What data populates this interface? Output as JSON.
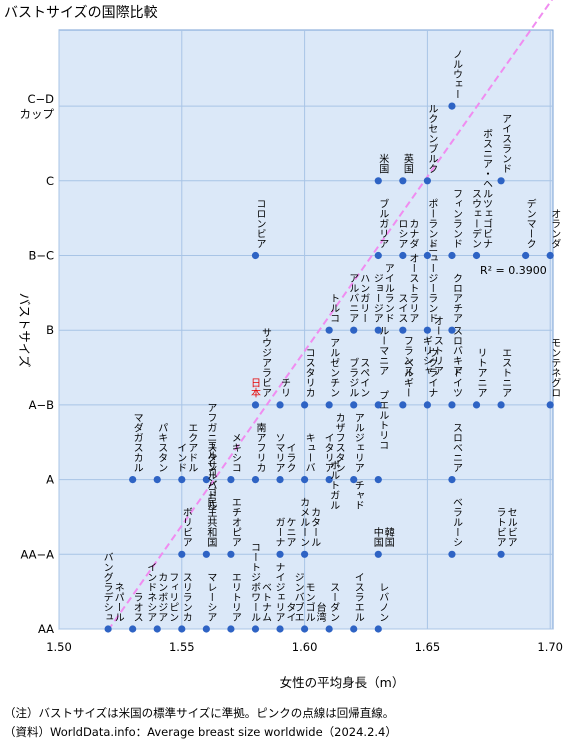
{
  "chart_data": {
    "type": "scatter",
    "title": "バストサイズの国際比較",
    "xlabel": "女性の平均身長（m）",
    "ylabel": "バストサイズ",
    "xlim": [
      1.5,
      1.71
    ],
    "x_ticks": [
      1.5,
      1.55,
      1.6,
      1.65,
      1.7
    ],
    "x_tick_labels": [
      "1.50",
      "1.55",
      "1.60",
      "1.65",
      "1.70"
    ],
    "y_ticks": [
      0,
      1,
      2,
      3,
      4,
      5,
      6,
      7
    ],
    "y_tick_labels": [
      "AA",
      "AA−A",
      "A",
      "A−B",
      "B",
      "B−C",
      "C",
      "C−D\nカップ"
    ],
    "grid": true,
    "marker_color": "#2e63c4",
    "highlight_color": "#e60000",
    "regression": {
      "r2_label": "R² = 0.3900",
      "slope": 46.7,
      "intercept": -71,
      "color": "#f08cf0",
      "style": "dashed"
    },
    "points": [
      {
        "label": "バングラデシュ",
        "x": 1.52,
        "y": 0
      },
      {
        "label": "ネパール",
        "x": 1.52,
        "y": 0
      },
      {
        "label": "ラオス",
        "x": 1.53,
        "y": 0
      },
      {
        "label": "インドネシア",
        "x": 1.54,
        "y": 0
      },
      {
        "label": "カンボジア",
        "x": 1.54,
        "y": 0
      },
      {
        "label": "フィリピン",
        "x": 1.54,
        "y": 0
      },
      {
        "label": "スリランカ",
        "x": 1.55,
        "y": 0
      },
      {
        "label": "マレーシア",
        "x": 1.56,
        "y": 0
      },
      {
        "label": "エリトリア",
        "x": 1.57,
        "y": 0
      },
      {
        "label": "コートジボワール",
        "x": 1.58,
        "y": 0
      },
      {
        "label": "ベトナム",
        "x": 1.58,
        "y": 0
      },
      {
        "label": "ナイジェリア",
        "x": 1.59,
        "y": 0
      },
      {
        "label": "タイ",
        "x": 1.59,
        "y": 0
      },
      {
        "label": "ジンバブエ",
        "x": 1.6,
        "y": 0
      },
      {
        "label": "モンゴル",
        "x": 1.6,
        "y": 0
      },
      {
        "label": "台湾",
        "x": 1.6,
        "y": 0
      },
      {
        "label": "スーダン",
        "x": 1.61,
        "y": 0
      },
      {
        "label": "イスラエル",
        "x": 1.62,
        "y": 0
      },
      {
        "label": "レバノン",
        "x": 1.63,
        "y": 0
      },
      {
        "label": "ボリビア",
        "x": 1.55,
        "y": 1
      },
      {
        "label": "コンゴ民主共和国",
        "x": 1.56,
        "y": 1
      },
      {
        "label": "エチオピア",
        "x": 1.57,
        "y": 1
      },
      {
        "label": "ガーナ",
        "x": 1.59,
        "y": 1
      },
      {
        "label": "ケニア",
        "x": 1.59,
        "y": 1
      },
      {
        "label": "カメルーン",
        "x": 1.6,
        "y": 1
      },
      {
        "label": "カタール",
        "x": 1.6,
        "y": 1
      },
      {
        "label": "中国",
        "x": 1.63,
        "y": 1
      },
      {
        "label": "韓国",
        "x": 1.63,
        "y": 1
      },
      {
        "label": "ベラルーシ",
        "x": 1.66,
        "y": 1
      },
      {
        "label": "ラトビア",
        "x": 1.68,
        "y": 1
      },
      {
        "label": "セルビア",
        "x": 1.68,
        "y": 1
      },
      {
        "label": "エルサルバドル",
        "x": 1.56,
        "y": 1.5
      },
      {
        "label": "ポルトガル",
        "x": 1.61,
        "y": 1.5
      },
      {
        "label": "チャド",
        "x": 1.62,
        "y": 1.5
      },
      {
        "label": "マダガスカル",
        "x": 1.53,
        "y": 2
      },
      {
        "label": "パキスタン",
        "x": 1.54,
        "y": 2
      },
      {
        "label": "インド",
        "x": 1.55,
        "y": 2
      },
      {
        "label": "エクアドル",
        "x": 1.55,
        "y": 2
      },
      {
        "label": "アフガニスタン",
        "x": 1.56,
        "y": 2
      },
      {
        "label": "メキシコ",
        "x": 1.57,
        "y": 2
      },
      {
        "label": "南アフリカ",
        "x": 1.58,
        "y": 2
      },
      {
        "label": "ソマリア",
        "x": 1.59,
        "y": 2
      },
      {
        "label": "イラク",
        "x": 1.59,
        "y": 2
      },
      {
        "label": "キューバ",
        "x": 1.6,
        "y": 2
      },
      {
        "label": "イタリア",
        "x": 1.61,
        "y": 2
      },
      {
        "label": "カザフスタン",
        "x": 1.61,
        "y": 2
      },
      {
        "label": "アルジェリア",
        "x": 1.62,
        "y": 2
      },
      {
        "label": "スロベニア",
        "x": 1.66,
        "y": 2
      },
      {
        "label": "プエルトリコ",
        "x": 1.63,
        "y": 2.3
      },
      {
        "label": "日本",
        "x": 1.58,
        "y": 3,
        "highlight": true
      },
      {
        "label": "サウジアラビア",
        "x": 1.58,
        "y": 3
      },
      {
        "label": "チリ",
        "x": 1.59,
        "y": 3
      },
      {
        "label": "コスタリカ",
        "x": 1.6,
        "y": 3
      },
      {
        "label": "アルゼンチン",
        "x": 1.61,
        "y": 3
      },
      {
        "label": "ブラジル",
        "x": 1.62,
        "y": 3
      },
      {
        "label": "スペイン",
        "x": 1.62,
        "y": 3
      },
      {
        "label": "ベルギー",
        "x": 1.64,
        "y": 3
      },
      {
        "label": "ウクライナ",
        "x": 1.65,
        "y": 3
      },
      {
        "label": "ドイツ",
        "x": 1.66,
        "y": 3
      },
      {
        "label": "リトアニア",
        "x": 1.67,
        "y": 3
      },
      {
        "label": "エストニア",
        "x": 1.68,
        "y": 3
      },
      {
        "label": "モンテネグロ",
        "x": 1.7,
        "y": 3
      },
      {
        "label": "ルーマニア",
        "x": 1.63,
        "y": 3.3
      },
      {
        "label": "フランス",
        "x": 1.64,
        "y": 3.3
      },
      {
        "label": "ギリシャ",
        "x": 1.65,
        "y": 3.3
      },
      {
        "label": "オーストリア",
        "x": 1.65,
        "y": 3.3
      },
      {
        "label": "スロバキア",
        "x": 1.66,
        "y": 3.3
      },
      {
        "label": "トルコ",
        "x": 1.61,
        "y": 4
      },
      {
        "label": "アルバニア",
        "x": 1.62,
        "y": 4
      },
      {
        "label": "ハンガリー",
        "x": 1.62,
        "y": 4
      },
      {
        "label": "ジョージア",
        "x": 1.63,
        "y": 4
      },
      {
        "label": "アイルランド",
        "x": 1.63,
        "y": 4
      },
      {
        "label": "スイス",
        "x": 1.64,
        "y": 4
      },
      {
        "label": "オーストラリア",
        "x": 1.64,
        "y": 4
      },
      {
        "label": "ニュージーランド",
        "x": 1.65,
        "y": 4
      },
      {
        "label": "クロアチア",
        "x": 1.66,
        "y": 4
      },
      {
        "label": "コロンビア",
        "x": 1.58,
        "y": 5
      },
      {
        "label": "ブルガリア",
        "x": 1.63,
        "y": 5
      },
      {
        "label": "ロシア",
        "x": 1.64,
        "y": 5
      },
      {
        "label": "カナダ",
        "x": 1.64,
        "y": 5
      },
      {
        "label": "ポーランド",
        "x": 1.65,
        "y": 5
      },
      {
        "label": "フィンランド",
        "x": 1.66,
        "y": 5
      },
      {
        "label": "スウェーデン",
        "x": 1.67,
        "y": 5
      },
      {
        "label": "ボスニア・ヘルツェゴビナ",
        "x": 1.67,
        "y": 5
      },
      {
        "label": "デンマーク",
        "x": 1.69,
        "y": 5
      },
      {
        "label": "オランダ",
        "x": 1.7,
        "y": 5
      },
      {
        "label": "米国",
        "x": 1.63,
        "y": 6
      },
      {
        "label": "英国",
        "x": 1.64,
        "y": 6
      },
      {
        "label": "ルクセンブルク",
        "x": 1.65,
        "y": 6
      },
      {
        "label": "アイスランド",
        "x": 1.68,
        "y": 6
      },
      {
        "label": "ノルウェー",
        "x": 1.66,
        "y": 7
      }
    ]
  },
  "notes": {
    "line1": "（注）バストサイズは米国の標準サイズに準拠。ピンクの点線は回帰直線。",
    "line2": "（資料）WorldData.info：Average breast size worldwide（2024.2.4）"
  }
}
